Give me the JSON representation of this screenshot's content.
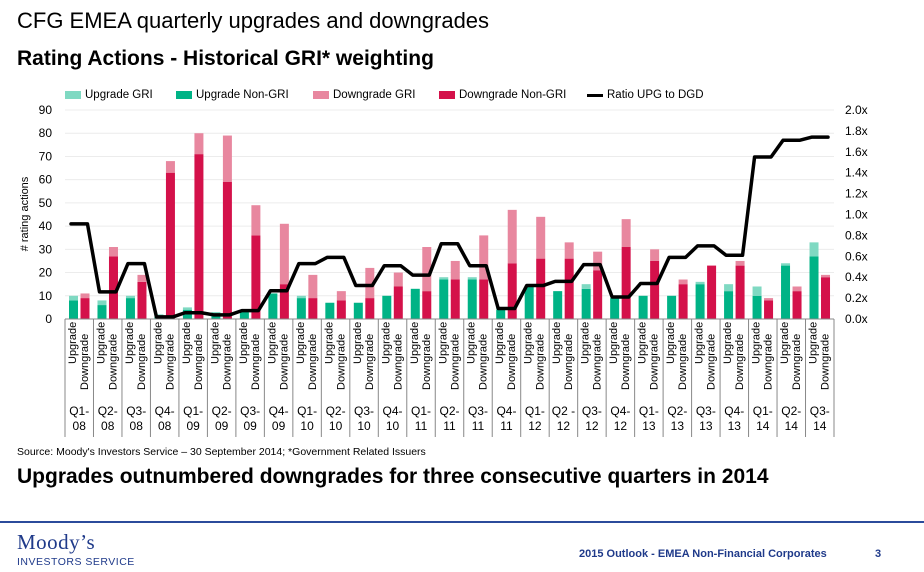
{
  "slide": {
    "title": "CFG EMEA quarterly upgrades and downgrades",
    "source": "Source: Moody's Investors Service – 30 September 2014; *Government Related Issuers",
    "headline": "Upgrades outnumbered downgrades for three consecutive quarters in 2014"
  },
  "footer": {
    "logo_main": "Moody’s",
    "logo_sub": "INVESTORS SERVICE",
    "text": "2015 Outlook - EMEA Non-Financial Corporates",
    "page": "3"
  },
  "colors": {
    "upgrade_gri": "#7fd9c2",
    "upgrade_non_gri": "#00b386",
    "downgrade_gri": "#e8879f",
    "downgrade_non_gri": "#d4114a",
    "ratio_line": "#000000",
    "footer_accent": "#1f3a8a"
  },
  "chart_data": {
    "type": "bar",
    "title": "Rating Actions - Historical GRI* weighting",
    "ylabel": "# rating actions",
    "y2label": "",
    "ylim": [
      0,
      90
    ],
    "yticks": [
      0,
      10,
      20,
      30,
      40,
      50,
      60,
      70,
      80,
      90
    ],
    "y2lim": [
      0,
      2.0
    ],
    "y2ticks": [
      "0.0x",
      "0.2x",
      "0.4x",
      "0.6x",
      "0.8x",
      "1.0x",
      "1.2x",
      "1.4x",
      "1.6x",
      "1.8x",
      "2.0x"
    ],
    "grid": true,
    "legend_position": "top",
    "legend": [
      "Upgrade GRI",
      "Upgrade Non-GRI",
      "Downgrade GRI",
      "Downgrade Non-GRI",
      "Ratio UPG to DGD"
    ],
    "bar_labels": [
      "Upgrade",
      "Downgrade"
    ],
    "categories": [
      "Q1-\n08",
      "Q2-\n08",
      "Q3-\n08",
      "Q4-\n08",
      "Q1-\n09",
      "Q2-\n09",
      "Q3-\n09",
      "Q4-\n09",
      "Q1-\n10",
      "Q2-\n10",
      "Q3-\n10",
      "Q4-\n10",
      "Q1-\n11",
      "Q2-\n11",
      "Q3-\n11",
      "Q4-\n11",
      "Q1-\n12",
      "Q2 -\n12",
      "Q3-\n12",
      "Q4-\n12",
      "Q1-\n13",
      "Q2-\n13",
      "Q3-\n13",
      "Q4-\n13",
      "Q1-\n14",
      "Q2-\n14",
      "Q3-\n14"
    ],
    "series": [
      {
        "name": "Upgrade Non-GRI",
        "stack": "Upgrade",
        "values": [
          8,
          6,
          9,
          1,
          4,
          2,
          3,
          11,
          9,
          7,
          7,
          10,
          13,
          17,
          17,
          4,
          14,
          12,
          13,
          9,
          10,
          10,
          15,
          12,
          10,
          23,
          27
        ]
      },
      {
        "name": "Upgrade GRI",
        "stack": "Upgrade",
        "values": [
          2,
          2,
          1,
          1,
          1,
          1,
          1,
          0,
          1,
          0,
          0,
          0,
          0,
          1,
          1,
          1,
          0,
          0,
          2,
          0,
          0,
          0,
          1,
          3,
          4,
          1,
          6
        ]
      },
      {
        "name": "Downgrade Non-GRI",
        "stack": "Downgrade",
        "values": [
          9,
          27,
          16,
          63,
          71,
          59,
          36,
          15,
          9,
          8,
          9,
          14,
          12,
          17,
          17,
          24,
          26,
          26,
          21,
          31,
          25,
          15,
          23,
          23,
          8,
          12,
          18
        ]
      },
      {
        "name": "Downgrade GRI",
        "stack": "Downgrade",
        "values": [
          2,
          4,
          3,
          5,
          9,
          20,
          13,
          26,
          10,
          4,
          13,
          6,
          19,
          8,
          19,
          23,
          18,
          7,
          8,
          12,
          5,
          2,
          0,
          2,
          1,
          2,
          1
        ]
      },
      {
        "name": "Ratio UPG to DGD",
        "type": "line",
        "axis": "right",
        "values": [
          0.91,
          0.26,
          0.53,
          0.02,
          0.06,
          0.04,
          0.08,
          0.27,
          0.53,
          0.59,
          0.32,
          0.51,
          0.42,
          0.72,
          0.51,
          0.1,
          0.32,
          0.36,
          0.52,
          0.21,
          0.34,
          0.59,
          0.7,
          0.61,
          1.55,
          1.71,
          1.74
        ]
      }
    ]
  }
}
